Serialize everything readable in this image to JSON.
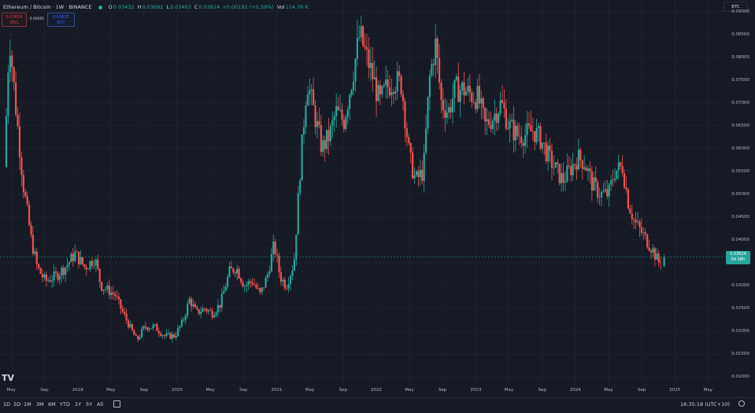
{
  "legend": {
    "symbol": "Ethereum / Bitcoin · 1W · BINANCE",
    "open_key": "O",
    "open": "0.03432",
    "high_key": "H",
    "high": "0.03692",
    "low_key": "L",
    "low": "0.03403",
    "close_key": "C",
    "close": "0.03624",
    "change": "+0.00192 (+5.59%)",
    "vol_key": "Vol",
    "vol": "114.76 K"
  },
  "trade": {
    "sell_price": "0.03624",
    "sell_label": "SELL",
    "spread": "0.00001",
    "buy_price": "0.03625",
    "buy_label": "BUY"
  },
  "currency_label": "BTC",
  "current_price": {
    "price": "0.03624",
    "countdown": "5d 18h"
  },
  "price_axis": [
    "0.09000",
    "0.08500",
    "0.08000",
    "0.07500",
    "0.07000",
    "0.06500",
    "0.06000",
    "0.05500",
    "0.05000",
    "0.04500",
    "0.04000",
    "0.03500",
    "0.03000",
    "0.02500",
    "0.02000",
    "0.01500",
    "0.01000"
  ],
  "time_axis": [
    "May",
    "Sep",
    "2019",
    "May",
    "Sep",
    "2020",
    "May",
    "Sep",
    "2021",
    "May",
    "Sep",
    "2022",
    "May",
    "Sep",
    "2023",
    "May",
    "Sep",
    "2024",
    "May",
    "Sep",
    "2025",
    "May"
  ],
  "ranges": [
    "1D",
    "5D",
    "1M",
    "3M",
    "6M",
    "YTD",
    "1Y",
    "5Y",
    "All"
  ],
  "clock": "16:35:18 (UTC+10)",
  "colors": {
    "up": "#26a69a",
    "down": "#ef5350",
    "background": "#161a25",
    "grid": "#1e222d"
  },
  "chart_data": {
    "type": "candlestick",
    "title": "Ethereum / Bitcoin · 1W · BINANCE",
    "ylim": [
      0.0085,
      0.0925
    ],
    "x_ticks": [
      "May",
      "Sep",
      "2019",
      "May",
      "Sep",
      "2020",
      "May",
      "Sep",
      "2021",
      "May",
      "Sep",
      "2022",
      "May",
      "Sep",
      "2023",
      "May",
      "Sep",
      "2024",
      "May",
      "Sep",
      "2025",
      "May"
    ],
    "xlim": [
      2018.29,
      2025.44
    ],
    "keypoints": [
      [
        2018.29,
        0.056
      ],
      [
        2018.34,
        0.085
      ],
      [
        2018.4,
        0.07
      ],
      [
        2018.48,
        0.052
      ],
      [
        2018.56,
        0.04
      ],
      [
        2018.62,
        0.034
      ],
      [
        2018.7,
        0.031
      ],
      [
        2018.8,
        0.032
      ],
      [
        2018.9,
        0.034
      ],
      [
        2019.0,
        0.037
      ],
      [
        2019.1,
        0.034
      ],
      [
        2019.2,
        0.036
      ],
      [
        2019.26,
        0.03
      ],
      [
        2019.33,
        0.029
      ],
      [
        2019.4,
        0.028
      ],
      [
        2019.46,
        0.025
      ],
      [
        2019.55,
        0.021
      ],
      [
        2019.62,
        0.018
      ],
      [
        2019.7,
        0.021
      ],
      [
        2019.8,
        0.021
      ],
      [
        2019.9,
        0.019
      ],
      [
        2020.0,
        0.019
      ],
      [
        2020.08,
        0.022
      ],
      [
        2020.15,
        0.027
      ],
      [
        2020.22,
        0.024
      ],
      [
        2020.3,
        0.025
      ],
      [
        2020.38,
        0.024
      ],
      [
        2020.46,
        0.026
      ],
      [
        2020.55,
        0.033
      ],
      [
        2020.62,
        0.034
      ],
      [
        2020.7,
        0.03
      ],
      [
        2020.78,
        0.031
      ],
      [
        2020.86,
        0.028
      ],
      [
        2020.93,
        0.032
      ],
      [
        2021.0,
        0.039
      ],
      [
        2021.06,
        0.032
      ],
      [
        2021.12,
        0.03
      ],
      [
        2021.2,
        0.035
      ],
      [
        2021.26,
        0.055
      ],
      [
        2021.33,
        0.075
      ],
      [
        2021.4,
        0.068
      ],
      [
        2021.48,
        0.06
      ],
      [
        2021.56,
        0.063
      ],
      [
        2021.62,
        0.068
      ],
      [
        2021.7,
        0.066
      ],
      [
        2021.78,
        0.075
      ],
      [
        2021.86,
        0.085
      ],
      [
        2021.93,
        0.08
      ],
      [
        2022.0,
        0.075
      ],
      [
        2022.06,
        0.07
      ],
      [
        2022.12,
        0.073
      ],
      [
        2022.2,
        0.075
      ],
      [
        2022.28,
        0.074
      ],
      [
        2022.36,
        0.058
      ],
      [
        2022.42,
        0.053
      ],
      [
        2022.5,
        0.055
      ],
      [
        2022.56,
        0.075
      ],
      [
        2022.62,
        0.083
      ],
      [
        2022.68,
        0.07
      ],
      [
        2022.75,
        0.068
      ],
      [
        2022.82,
        0.073
      ],
      [
        2022.9,
        0.073
      ],
      [
        2022.96,
        0.072
      ],
      [
        2023.05,
        0.071
      ],
      [
        2023.12,
        0.065
      ],
      [
        2023.2,
        0.067
      ],
      [
        2023.28,
        0.07
      ],
      [
        2023.36,
        0.065
      ],
      [
        2023.44,
        0.063
      ],
      [
        2023.52,
        0.063
      ],
      [
        2023.6,
        0.064
      ],
      [
        2023.68,
        0.062
      ],
      [
        2023.76,
        0.058
      ],
      [
        2023.84,
        0.055
      ],
      [
        2023.9,
        0.053
      ],
      [
        2023.96,
        0.055
      ],
      [
        2024.05,
        0.058
      ],
      [
        2024.12,
        0.057
      ],
      [
        2024.2,
        0.052
      ],
      [
        2024.28,
        0.05
      ],
      [
        2024.36,
        0.05
      ],
      [
        2024.42,
        0.055
      ],
      [
        2024.5,
        0.056
      ],
      [
        2024.56,
        0.048
      ],
      [
        2024.62,
        0.044
      ],
      [
        2024.68,
        0.042
      ],
      [
        2024.74,
        0.04
      ],
      [
        2024.8,
        0.038
      ],
      [
        2024.86,
        0.035
      ],
      [
        2024.88,
        0.036
      ]
    ],
    "last_candle": {
      "open": 0.03432,
      "high": 0.03692,
      "low": 0.03403,
      "close": 0.03624
    }
  }
}
